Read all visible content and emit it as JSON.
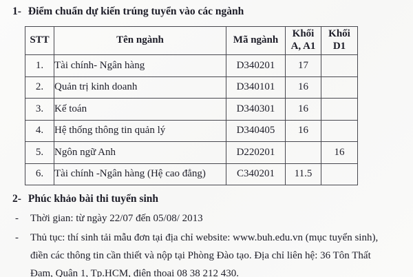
{
  "page": {
    "background": "#f9f9f8",
    "text_color": "#1d1d28",
    "border_color": "#47474e"
  },
  "section1": {
    "number": "1-",
    "title": "Điểm chuẩn dự kiến trúng tuyển vào các ngành"
  },
  "table": {
    "headers": [
      {
        "label": "STT"
      },
      {
        "label": "Tên ngành"
      },
      {
        "label": "Mã ngành"
      },
      {
        "label": "Khối\nA, A1"
      },
      {
        "label": "Khối\nD1"
      }
    ],
    "rows": [
      {
        "stt": "1.",
        "ten_nganh": "Tài chính- Ngân hàng",
        "ma_nganh": "D340201",
        "khoi_a_a1": "17",
        "khoi_d1": ""
      },
      {
        "stt": "2.",
        "ten_nganh": "Quản trị kinh doanh",
        "ma_nganh": "D340101",
        "khoi_a_a1": "16",
        "khoi_d1": ""
      },
      {
        "stt": "3.",
        "ten_nganh": "Kế toán",
        "ma_nganh": "D340301",
        "khoi_a_a1": "16",
        "khoi_d1": ""
      },
      {
        "stt": "4.",
        "ten_nganh": "Hệ thống thông tin quản lý",
        "ma_nganh": "D340405",
        "khoi_a_a1": "16",
        "khoi_d1": ""
      },
      {
        "stt": "5.",
        "ten_nganh": "Ngôn ngữ Anh",
        "ma_nganh": "D220201",
        "khoi_a_a1": "",
        "khoi_d1": "16"
      },
      {
        "stt": "6.",
        "ten_nganh": "Tài chính -Ngân hàng (Hệ cao đẳng)",
        "ma_nganh": "C340201",
        "khoi_a_a1": "11.5",
        "khoi_d1": ""
      }
    ]
  },
  "section2": {
    "number": "2-",
    "title": "Phúc khảo bài thi tuyển sinh",
    "bullets": [
      {
        "marker": "-",
        "text": "Thời gian: từ ngày 22/07 đến 05/08/ 2013"
      },
      {
        "marker": "-",
        "text": "Thủ tục: thí sinh tải mẫu đơn tại địa chỉ website: www.buh.edu.vn (mục tuyển sinh), điền các thông tin cần thiết và nộp tại Phòng Đào tạo. Địa chỉ liên hệ: 36 Tôn Thất Đạm, Quận 1, Tp.HCM, điện thoại 08 38 212 430."
      }
    ]
  }
}
